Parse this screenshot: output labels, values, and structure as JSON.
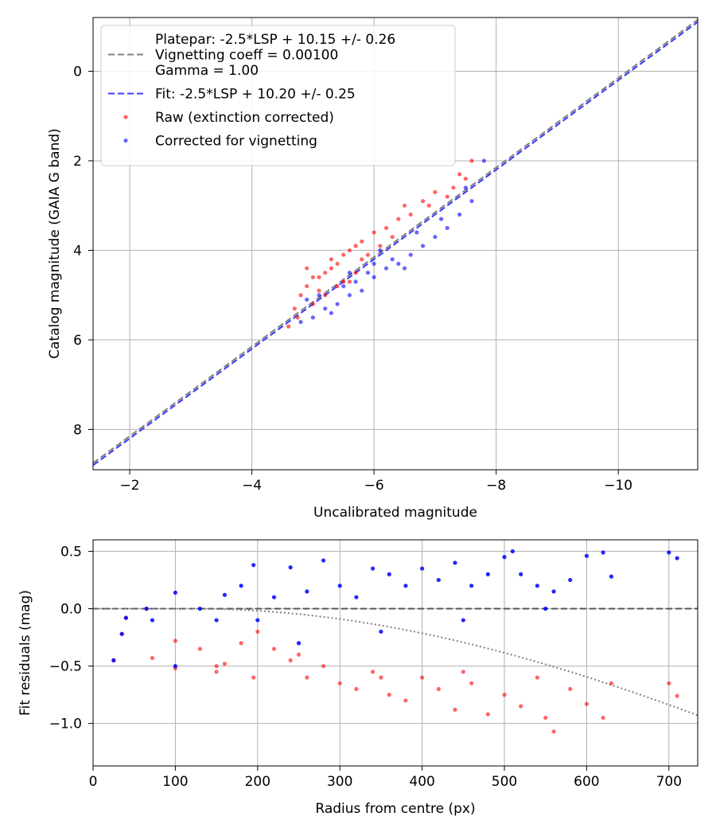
{
  "chart_data": [
    {
      "type": "scatter",
      "xlabel": "Uncalibrated magnitude",
      "ylabel": "Catalog magnitude (GAIA G band)",
      "xlim": [
        -1.4,
        -11.3
      ],
      "ylim": [
        8.9,
        -1.2
      ],
      "x_axis_inverted": true,
      "y_axis_inverted": true,
      "xticks": [
        -2,
        -4,
        -6,
        -8,
        -10
      ],
      "xtick_labels": [
        "−2",
        "−4",
        "−6",
        "−8",
        "−10"
      ],
      "yticks": [
        0,
        2,
        4,
        6,
        8
      ],
      "ytick_labels": [
        "0",
        "2",
        "4",
        "6",
        "8"
      ],
      "grid": true,
      "legend_position": "upper-left",
      "legend_entries": [
        {
          "label_lines": [
            "Platepar: -2.5*LSP + 10.15 +/- 0.26",
            "Vignetting coeff = 0.00100",
            "Gamma = 1.00"
          ],
          "style": "dashed",
          "color": "#808080"
        },
        {
          "label_lines": [
            "Fit: -2.5*LSP + 10.20 +/- 0.25"
          ],
          "style": "dashed",
          "color": "#3b3bff"
        },
        {
          "label_lines": [
            "Raw (extinction corrected)"
          ],
          "style": "marker",
          "color": "#ff0000"
        },
        {
          "label_lines": [
            "Corrected for vignetting"
          ],
          "style": "marker",
          "color": "#0000ff"
        }
      ],
      "lines": [
        {
          "name": "Platepar: -2.5*LSP + 10.15 +/- 0.26",
          "slope": 1.0,
          "intercept": 10.15,
          "color": "#808080",
          "style": "dashed"
        },
        {
          "name": "Fit: -2.5*LSP + 10.20 +/- 0.25",
          "slope": 1.0,
          "intercept": 10.2,
          "color": "#3b3bff",
          "style": "dashed"
        }
      ],
      "series": [
        {
          "name": "Raw (extinction corrected)",
          "color": "#ff0000",
          "x": [
            -4.75,
            -4.8,
            -4.9,
            -5.0,
            -5.1,
            -5.2,
            -5.3,
            -5.4,
            -5.5,
            -5.6,
            -5.7,
            -5.8,
            -5.0,
            -5.2,
            -5.4,
            -5.6,
            -5.8,
            -6.0,
            -6.2,
            -6.4,
            -4.9,
            -5.3,
            -5.7,
            -6.1,
            -6.5,
            -6.8,
            -7.0,
            -7.3,
            -7.5,
            -7.6,
            -4.6,
            -4.7,
            -5.1,
            -5.5,
            -5.9,
            -6.3,
            -6.6,
            -6.9,
            -7.2,
            -7.4
          ],
          "y": [
            5.5,
            5.0,
            4.8,
            4.6,
            4.9,
            4.5,
            4.4,
            4.3,
            4.1,
            4.0,
            3.9,
            3.8,
            5.2,
            5.0,
            4.8,
            4.7,
            4.2,
            3.6,
            3.5,
            3.3,
            4.4,
            4.2,
            4.5,
            3.9,
            3.0,
            2.9,
            2.7,
            2.6,
            2.4,
            2.0,
            5.7,
            5.3,
            4.6,
            4.7,
            4.1,
            3.7,
            3.2,
            3.0,
            2.8,
            2.3
          ]
        },
        {
          "name": "Corrected for vignetting",
          "color": "#0000ff",
          "x": [
            -4.8,
            -5.0,
            -5.2,
            -5.4,
            -5.6,
            -5.8,
            -6.0,
            -6.2,
            -6.4,
            -6.6,
            -6.8,
            -7.0,
            -7.2,
            -7.4,
            -7.6,
            -5.1,
            -5.3,
            -5.5,
            -5.7,
            -5.9,
            -6.1,
            -6.3,
            -6.5,
            -4.9,
            -5.6,
            -6.0,
            -6.7,
            -7.1,
            -7.5,
            -7.8
          ],
          "y": [
            5.6,
            5.5,
            5.3,
            5.2,
            5.0,
            4.9,
            4.6,
            4.4,
            4.3,
            4.1,
            3.9,
            3.7,
            3.5,
            3.2,
            2.9,
            5.0,
            5.4,
            4.8,
            4.7,
            4.5,
            4.0,
            4.2,
            4.4,
            5.1,
            4.5,
            4.3,
            3.6,
            3.3,
            2.6,
            2.0
          ]
        }
      ]
    },
    {
      "type": "scatter",
      "xlabel": "Radius from centre (px)",
      "ylabel": "Fit residuals (mag)",
      "xlim": [
        0,
        735
      ],
      "ylim": [
        -1.37,
        0.6
      ],
      "xticks": [
        0,
        100,
        200,
        300,
        400,
        500,
        600,
        700
      ],
      "xtick_labels": [
        "0",
        "100",
        "200",
        "300",
        "400",
        "500",
        "600",
        "700"
      ],
      "yticks": [
        0.5,
        0.0,
        -0.5,
        -1.0
      ],
      "ytick_labels": [
        "0.5",
        "0.0",
        "−0.5",
        "−1.0"
      ],
      "grid": true,
      "reference_line": {
        "y": 0.0,
        "style": "dashed",
        "color": "#555555"
      },
      "vignetting_curve": {
        "style": "dotted",
        "color": "#808080",
        "coeff": 0.001,
        "flat_until": 120
      },
      "series": [
        {
          "name": "Raw (extinction corrected)",
          "color": "#ff0000",
          "x": [
            25,
            35,
            40,
            65,
            72,
            100,
            100,
            130,
            150,
            160,
            180,
            195,
            200,
            220,
            240,
            260,
            280,
            300,
            320,
            340,
            360,
            380,
            400,
            420,
            440,
            460,
            480,
            500,
            520,
            540,
            560,
            580,
            600,
            620,
            630,
            700,
            710,
            150,
            250,
            350,
            450,
            550
          ],
          "y": [
            -0.45,
            -0.22,
            -0.08,
            0.0,
            -0.43,
            -0.52,
            -0.28,
            -0.35,
            -0.55,
            -0.48,
            -0.3,
            -0.6,
            -0.2,
            -0.35,
            -0.45,
            -0.6,
            -0.5,
            -0.65,
            -0.7,
            -0.55,
            -0.75,
            -0.8,
            -0.6,
            -0.7,
            -0.88,
            -0.65,
            -0.92,
            -0.75,
            -0.85,
            -0.6,
            -1.07,
            -0.7,
            -0.83,
            -0.95,
            -0.65,
            -0.65,
            -0.76,
            -0.5,
            -0.4,
            -0.6,
            -0.55,
            -0.95
          ]
        },
        {
          "name": "Corrected for vignetting",
          "color": "#0000ff",
          "x": [
            25,
            35,
            40,
            65,
            72,
            100,
            100,
            130,
            150,
            160,
            180,
            195,
            200,
            220,
            240,
            260,
            280,
            300,
            320,
            340,
            360,
            380,
            400,
            420,
            440,
            460,
            480,
            500,
            510,
            520,
            540,
            560,
            580,
            600,
            620,
            630,
            700,
            710,
            250,
            350,
            450,
            550
          ],
          "y": [
            -0.45,
            -0.22,
            -0.08,
            0.0,
            -0.1,
            0.14,
            -0.5,
            0.0,
            -0.1,
            0.12,
            0.2,
            0.38,
            -0.1,
            0.1,
            0.36,
            0.15,
            0.42,
            0.2,
            0.1,
            0.35,
            0.3,
            0.2,
            0.35,
            0.25,
            0.4,
            0.2,
            0.3,
            0.45,
            0.5,
            0.3,
            0.2,
            0.15,
            0.25,
            0.46,
            0.49,
            0.28,
            0.49,
            0.44,
            -0.3,
            -0.2,
            -0.1,
            0.0
          ]
        }
      ]
    }
  ]
}
